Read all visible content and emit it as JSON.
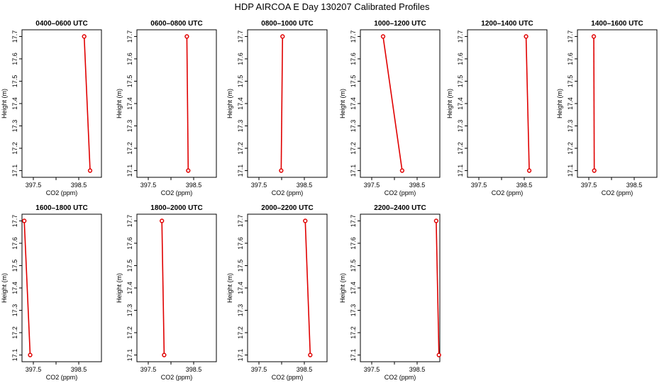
{
  "page_title": "HDP AIRCOA E  Day 130207  Calibrated Profiles",
  "chart_data": {
    "type": "line",
    "xlabel": "CO2 (ppm)",
    "ylabel": "Height (m)",
    "xlim": [
      397.25,
      399.0
    ],
    "ylim": [
      17.07,
      17.73
    ],
    "xticks": [
      397.5,
      398.0,
      398.5
    ],
    "xtick_labels": [
      "397.5",
      "",
      "398.5"
    ],
    "yticks": [
      17.1,
      17.2,
      17.3,
      17.4,
      17.5,
      17.6,
      17.7
    ],
    "ytick_labels": [
      "17.1",
      "17.2",
      "17.3",
      "17.4",
      "17.5",
      "17.6",
      "17.7"
    ],
    "panels": [
      {
        "title": "0400–0600 UTC",
        "x": [
          398.62,
          398.75
        ],
        "y": [
          17.7,
          17.1
        ]
      },
      {
        "title": "0600–0800 UTC",
        "x": [
          398.35,
          398.38
        ],
        "y": [
          17.7,
          17.1
        ]
      },
      {
        "title": "0800–1000 UTC",
        "x": [
          398.02,
          397.99
        ],
        "y": [
          17.7,
          17.1
        ]
      },
      {
        "title": "1000–1200 UTC",
        "x": [
          397.75,
          398.17
        ],
        "y": [
          17.7,
          17.1
        ]
      },
      {
        "title": "1200–1400 UTC",
        "x": [
          398.54,
          398.61
        ],
        "y": [
          17.7,
          17.1
        ]
      },
      {
        "title": "1400–1600 UTC",
        "x": [
          397.61,
          397.62
        ],
        "y": [
          17.7,
          17.1
        ]
      },
      {
        "title": "1600–1800 UTC",
        "x": [
          397.3,
          397.43
        ],
        "y": [
          17.7,
          17.1
        ]
      },
      {
        "title": "1800–2000 UTC",
        "x": [
          397.8,
          397.85
        ],
        "y": [
          17.7,
          17.1
        ]
      },
      {
        "title": "2000–2200 UTC",
        "x": [
          398.52,
          398.63
        ],
        "y": [
          17.7,
          17.1
        ]
      },
      {
        "title": "2200–2400 UTC",
        "x": [
          398.92,
          398.98
        ],
        "y": [
          17.7,
          17.1
        ]
      }
    ]
  }
}
